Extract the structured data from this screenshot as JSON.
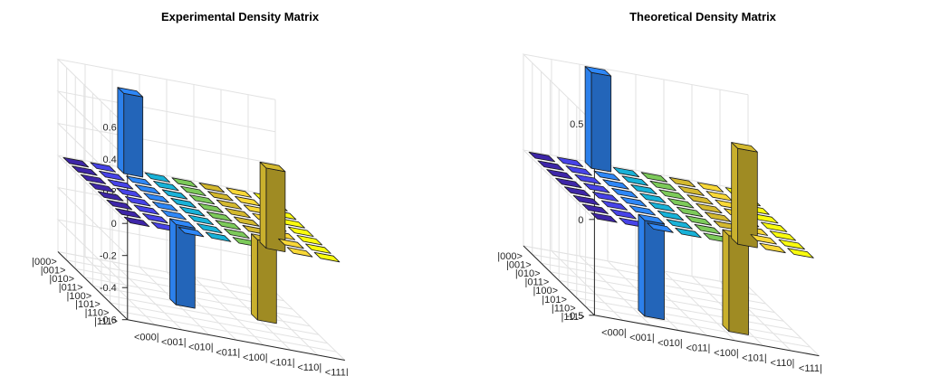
{
  "chart_data": [
    {
      "type": "bar3d",
      "title": "Experimental Density Matrix",
      "row_labels": [
        "|000>",
        "|001>",
        "|010>",
        "|011>",
        "|100>",
        "|101>",
        "|110>",
        "|111>"
      ],
      "col_labels": [
        "<000|",
        "<001|",
        "<010|",
        "<011|",
        "<100|",
        "<101|",
        "<110|",
        "<111|"
      ],
      "zlim": [
        -0.6,
        0.6
      ],
      "zticks": [
        -0.6,
        -0.4,
        -0.2,
        0,
        0.2,
        0.4,
        0.6
      ],
      "zticklabels": [
        "-0.6",
        "-0.4",
        "-0.2",
        "0",
        "0.2",
        "0.4",
        "0.6"
      ],
      "matrix": [
        [
          0,
          0,
          0.5,
          0,
          0,
          0,
          0,
          0
        ],
        [
          0,
          0,
          0,
          0,
          0,
          0,
          0,
          0
        ],
        [
          0,
          0,
          0,
          0,
          0,
          0,
          0,
          0
        ],
        [
          0,
          0,
          0,
          0,
          0,
          0,
          0,
          0
        ],
        [
          0,
          0,
          0,
          0,
          0,
          0,
          0,
          0
        ],
        [
          0,
          0,
          0,
          0,
          0,
          0,
          0,
          0
        ],
        [
          0,
          0,
          -0.5,
          0,
          0,
          -0.5,
          0,
          0
        ],
        [
          0,
          0,
          0,
          0,
          0,
          0.5,
          0,
          0
        ]
      ]
    },
    {
      "type": "bar3d",
      "title": "Theoretical Density Matrix",
      "row_labels": [
        "|000>",
        "|001>",
        "|010>",
        "|011>",
        "|100>",
        "|101>",
        "|110>",
        "|111>"
      ],
      "col_labels": [
        "<000|",
        "<001|",
        "<010|",
        "<011|",
        "<100|",
        "<101|",
        "<110|",
        "<111|"
      ],
      "zlim": [
        -0.5,
        0.5
      ],
      "zticks": [
        -0.5,
        0,
        0.5
      ],
      "zticklabels": [
        "-0.5",
        "0",
        "0.5"
      ],
      "matrix": [
        [
          0,
          0,
          0.5,
          0,
          0,
          0,
          0,
          0
        ],
        [
          0,
          0,
          0,
          0,
          0,
          0,
          0,
          0
        ],
        [
          0,
          0,
          0,
          0,
          0,
          0,
          0,
          0
        ],
        [
          0,
          0,
          0,
          0,
          0,
          0,
          0,
          0
        ],
        [
          0,
          0,
          0,
          0,
          0,
          0,
          0,
          0
        ],
        [
          0,
          0,
          0,
          0,
          0,
          0,
          0,
          0
        ],
        [
          0,
          0,
          -0.5,
          0,
          0,
          -0.5,
          0,
          0
        ],
        [
          0,
          0,
          0,
          0,
          0,
          0.5,
          0,
          0
        ]
      ]
    }
  ],
  "colormap": [
    "#3e26a8",
    "#4743e8",
    "#2e87f7",
    "#18b2d8",
    "#2dc798",
    "#7cca5a",
    "#d4b92f",
    "#f9d837",
    "#f9fb0e"
  ]
}
